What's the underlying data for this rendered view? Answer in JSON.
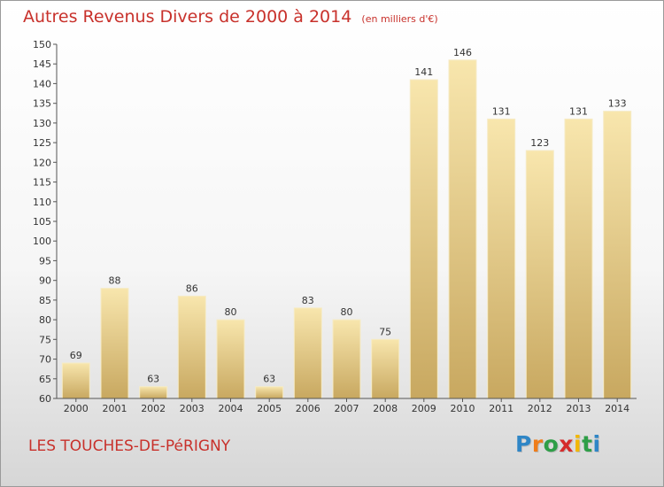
{
  "chart_data": {
    "type": "bar",
    "title": "Autres Revenus Divers de 2000 à 2014",
    "subtitle": "(en milliers d'€)",
    "categories": [
      "2000",
      "2001",
      "2002",
      "2003",
      "2004",
      "2005",
      "2006",
      "2007",
      "2008",
      "2009",
      "2010",
      "2011",
      "2012",
      "2013",
      "2014"
    ],
    "values": [
      69,
      88,
      63,
      86,
      80,
      63,
      83,
      80,
      75,
      141,
      146,
      131,
      123,
      131,
      133
    ],
    "ylim": [
      60,
      150
    ],
    "ytick_step": 5,
    "grid": false,
    "bar_color": "#e8cd86",
    "bar_highlight": "#f8e6ad",
    "bar_shadow": "#c8a860"
  },
  "place_name": "LES TOUCHES-DE-PéRIGNY",
  "brand": {
    "letters": [
      "P",
      "r",
      "o",
      "x",
      "i",
      "t",
      "i"
    ],
    "colors": [
      "#2f86c6",
      "#ef7d1a",
      "#2e9e47",
      "#d52b2b",
      "#f2b705",
      "#2e9e47",
      "#2f86c6"
    ]
  }
}
